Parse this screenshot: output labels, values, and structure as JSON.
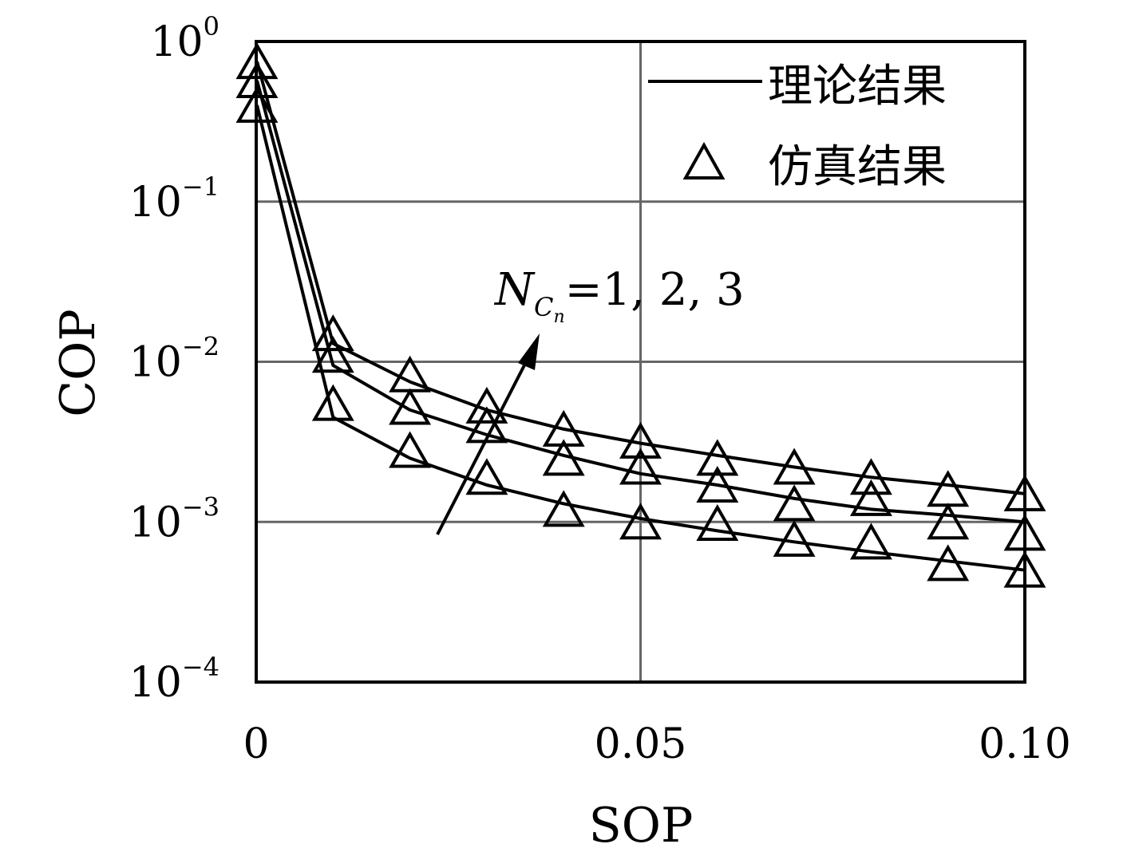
{
  "chart_data": {
    "type": "line",
    "xlabel": "SOP",
    "ylabel": "COP",
    "xlim": [
      0,
      0.1
    ],
    "ylim": [
      0.0001,
      1
    ],
    "yscale": "log",
    "grid": true,
    "legend_position": "top-right",
    "x_ticks": [
      {
        "value": 0,
        "label": "0"
      },
      {
        "value": 0.05,
        "label": "0.05"
      },
      {
        "value": 0.1,
        "label": "0.10"
      }
    ],
    "y_ticks": [
      {
        "value": 1,
        "base": "10",
        "exp": "0"
      },
      {
        "value": 0.1,
        "base": "10",
        "exp": "−1"
      },
      {
        "value": 0.01,
        "base": "10",
        "exp": "−2"
      },
      {
        "value": 0.001,
        "base": "10",
        "exp": "−3"
      },
      {
        "value": 0.0001,
        "base": "10",
        "exp": "−4"
      }
    ],
    "legend": {
      "line_label": "理论结果",
      "marker_label": "仿真结果"
    },
    "annotation": {
      "symbol": "N",
      "sub": "C",
      "subsub": "n",
      "text": "=1, 2, 3"
    },
    "x": [
      0.0001,
      0.01,
      0.02,
      0.03,
      0.04,
      0.05,
      0.06,
      0.07,
      0.08,
      0.09,
      0.1
    ],
    "series": [
      {
        "theory": [
          0.4,
          0.0045,
          0.0025,
          0.0017,
          0.0013,
          0.00105,
          0.00088,
          0.00075,
          0.00065,
          0.00057,
          0.0005
        ],
        "sim": [
          0.4,
          0.0055,
          0.0028,
          0.0019,
          0.0012,
          0.001,
          0.00098,
          0.00078,
          0.00075,
          0.00055,
          0.0005
        ]
      },
      {
        "theory": [
          0.57,
          0.0095,
          0.005,
          0.0035,
          0.0026,
          0.002,
          0.0017,
          0.0014,
          0.0012,
          0.0011,
          0.001
        ],
        "sim": [
          0.57,
          0.011,
          0.0052,
          0.004,
          0.0025,
          0.0022,
          0.0017,
          0.0013,
          0.0014,
          0.001,
          0.00085
        ]
      },
      {
        "theory": [
          0.75,
          0.013,
          0.0075,
          0.005,
          0.0038,
          0.0031,
          0.0026,
          0.0022,
          0.0019,
          0.0017,
          0.0015
        ],
        "sim": [
          0.75,
          0.015,
          0.0083,
          0.0053,
          0.0038,
          0.0032,
          0.0025,
          0.0022,
          0.0019,
          0.0016,
          0.0015
        ]
      }
    ]
  }
}
